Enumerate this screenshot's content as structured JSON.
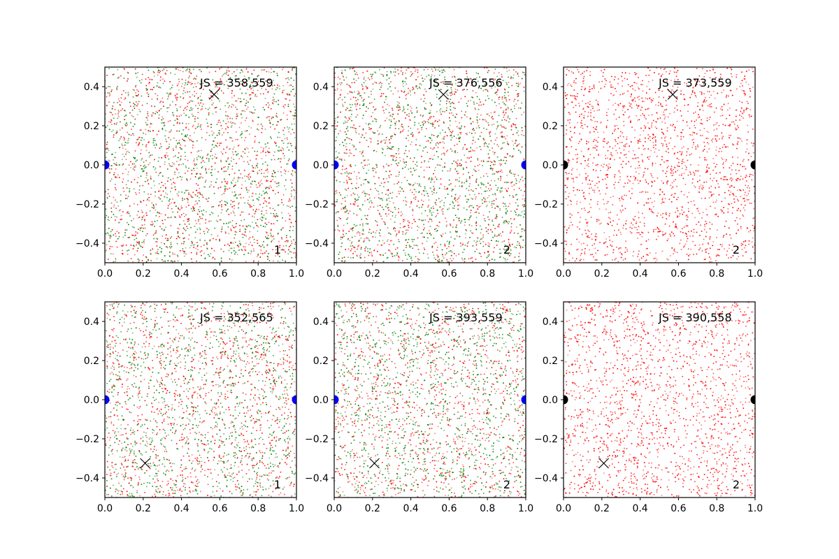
{
  "chart_data": [
    {
      "type": "scatter",
      "xlim": [
        0.0,
        1.0
      ],
      "ylim": [
        -0.5,
        0.5
      ],
      "xticks": [
        "0.0",
        "0.2",
        "0.4",
        "0.6",
        "0.8",
        "1.0"
      ],
      "yticks": [
        "−0.4",
        "−0.2",
        "0.0",
        "0.2",
        "0.4"
      ],
      "annotation": "JS = 358,559",
      "corner_label": "1",
      "marker_x": {
        "x": 0.57,
        "y": 0.36
      },
      "endpoints": {
        "color": "#0000ff",
        "points": [
          {
            "x": 0.0,
            "y": 0.0
          },
          {
            "x": 1.0,
            "y": 0.0
          }
        ]
      },
      "series": [
        {
          "color": "#ff0000",
          "approx_count": 1300
        },
        {
          "color": "#008000",
          "approx_count": 1100
        }
      ]
    },
    {
      "type": "scatter",
      "xlim": [
        0.0,
        1.0
      ],
      "ylim": [
        -0.5,
        0.5
      ],
      "xticks": [
        "0.0",
        "0.2",
        "0.4",
        "0.6",
        "0.8",
        "1.0"
      ],
      "yticks": [
        "−0.4",
        "−0.2",
        "0.0",
        "0.2",
        "0.4"
      ],
      "annotation": "JS = 376,556",
      "corner_label": "2",
      "marker_x": {
        "x": 0.57,
        "y": 0.36
      },
      "endpoints": {
        "color": "#0000ff",
        "points": [
          {
            "x": 0.0,
            "y": 0.0
          },
          {
            "x": 1.0,
            "y": 0.0
          }
        ]
      },
      "series": [
        {
          "color": "#ff0000",
          "approx_count": 1200
        },
        {
          "color": "#008000",
          "approx_count": 1200
        }
      ]
    },
    {
      "type": "scatter",
      "xlim": [
        0.0,
        1.0
      ],
      "ylim": [
        -0.5,
        0.5
      ],
      "xticks": [
        "0.0",
        "0.2",
        "0.4",
        "0.6",
        "0.8",
        "1.0"
      ],
      "yticks": [
        "−0.4",
        "−0.2",
        "0.0",
        "0.2",
        "0.4"
      ],
      "annotation": "JS = 373,559",
      "corner_label": "2",
      "marker_x": {
        "x": 0.57,
        "y": 0.36
      },
      "endpoints": {
        "color": "#000000",
        "points": [
          {
            "x": 0.0,
            "y": 0.0
          },
          {
            "x": 1.0,
            "y": 0.0
          }
        ]
      },
      "series": [
        {
          "color": "#ff0000",
          "approx_count": 1800
        }
      ]
    },
    {
      "type": "scatter",
      "xlim": [
        0.0,
        1.0
      ],
      "ylim": [
        -0.5,
        0.5
      ],
      "xticks": [
        "0.0",
        "0.2",
        "0.4",
        "0.6",
        "0.8",
        "1.0"
      ],
      "yticks": [
        "−0.4",
        "−0.2",
        "0.0",
        "0.2",
        "0.4"
      ],
      "annotation": "JS = 352,565",
      "corner_label": "1",
      "marker_x": {
        "x": 0.21,
        "y": -0.325
      },
      "endpoints": {
        "color": "#0000ff",
        "points": [
          {
            "x": 0.0,
            "y": 0.0
          },
          {
            "x": 1.0,
            "y": 0.0
          }
        ]
      },
      "series": [
        {
          "color": "#ff0000",
          "approx_count": 1300
        },
        {
          "color": "#008000",
          "approx_count": 1100
        }
      ]
    },
    {
      "type": "scatter",
      "xlim": [
        0.0,
        1.0
      ],
      "ylim": [
        -0.5,
        0.5
      ],
      "xticks": [
        "0.0",
        "0.2",
        "0.4",
        "0.6",
        "0.8",
        "1.0"
      ],
      "yticks": [
        "−0.4",
        "−0.2",
        "0.0",
        "0.2",
        "0.4"
      ],
      "annotation": "JS = 393,559",
      "corner_label": "2",
      "marker_x": {
        "x": 0.21,
        "y": -0.325
      },
      "endpoints": {
        "color": "#0000ff",
        "points": [
          {
            "x": 0.0,
            "y": 0.0
          },
          {
            "x": 1.0,
            "y": 0.0
          }
        ]
      },
      "series": [
        {
          "color": "#ff0000",
          "approx_count": 1200
        },
        {
          "color": "#008000",
          "approx_count": 1200
        }
      ]
    },
    {
      "type": "scatter",
      "xlim": [
        0.0,
        1.0
      ],
      "ylim": [
        -0.5,
        0.5
      ],
      "xticks": [
        "0.0",
        "0.2",
        "0.4",
        "0.6",
        "0.8",
        "1.0"
      ],
      "yticks": [
        "−0.4",
        "−0.2",
        "0.0",
        "0.2",
        "0.4"
      ],
      "annotation": "JS = 390,558",
      "corner_label": "2",
      "marker_x": {
        "x": 0.21,
        "y": -0.325
      },
      "endpoints": {
        "color": "#000000",
        "points": [
          {
            "x": 0.0,
            "y": 0.0
          },
          {
            "x": 1.0,
            "y": 0.0
          }
        ]
      },
      "series": [
        {
          "color": "#ff0000",
          "approx_count": 1800
        }
      ]
    }
  ]
}
